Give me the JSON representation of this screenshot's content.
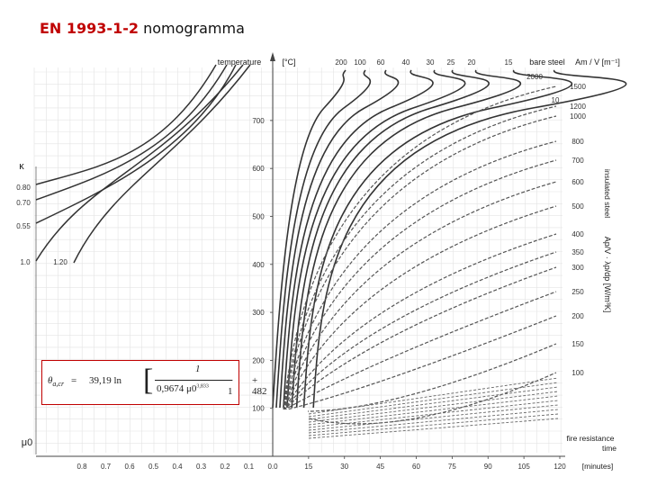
{
  "slide": {
    "title_code": "EN 1993-1-2",
    "title_rest": "nomogramma"
  },
  "formula": {
    "lhs": "θa,cr",
    "lhs_main": "θ",
    "lhs_sub": "a,cr",
    "eq": "=",
    "coef": "39,19 ln",
    "numerator": "1",
    "denominator": "0,9674 μ0",
    "exponent": "3,833",
    "minus_one": "− 1",
    "plus": "+ 482"
  },
  "chart_data": {
    "type": "line",
    "title": "",
    "axes": {
      "temperature_label": "temperature",
      "temperature_unit": "[°C]",
      "temperature_ticks": [
        "100",
        "200",
        "300",
        "400",
        "500",
        "600",
        "700"
      ],
      "temperature_range": [
        0,
        800
      ],
      "time_label_1": "fire resistance",
      "time_label_2": "time",
      "time_unit": "[minutes]",
      "time_ticks": [
        "15",
        "30",
        "45",
        "60",
        "75",
        "90",
        "105",
        "120"
      ],
      "time_range": [
        0,
        120
      ],
      "mu_label": "μ0",
      "mu_ticks": [
        "0.8",
        "0.7",
        "0.6",
        "0.5",
        "0.4",
        "0.3",
        "0.2",
        "0.1",
        "0.0"
      ],
      "kappa_label": "κ",
      "kappa_ticks": [
        "0.80",
        "0.70",
        "0.55",
        "1.0",
        "1.20"
      ]
    },
    "bare_steel": {
      "label": "bare steel",
      "unit_label": "Am / V [m⁻¹]",
      "section_factors": [
        "200",
        "100",
        "60",
        "40",
        "30",
        "25",
        "20",
        "15",
        "10"
      ],
      "extra_label": "2000"
    },
    "insulated_steel": {
      "label": "insulated steel",
      "unit_label": "Ap/V · λp/dp [W/m³K]",
      "values": [
        "1500",
        "1200",
        "1000",
        "800",
        "700",
        "600",
        "500",
        "400",
        "350",
        "300",
        "250",
        "200",
        "150",
        "100"
      ]
    },
    "grid": true
  }
}
